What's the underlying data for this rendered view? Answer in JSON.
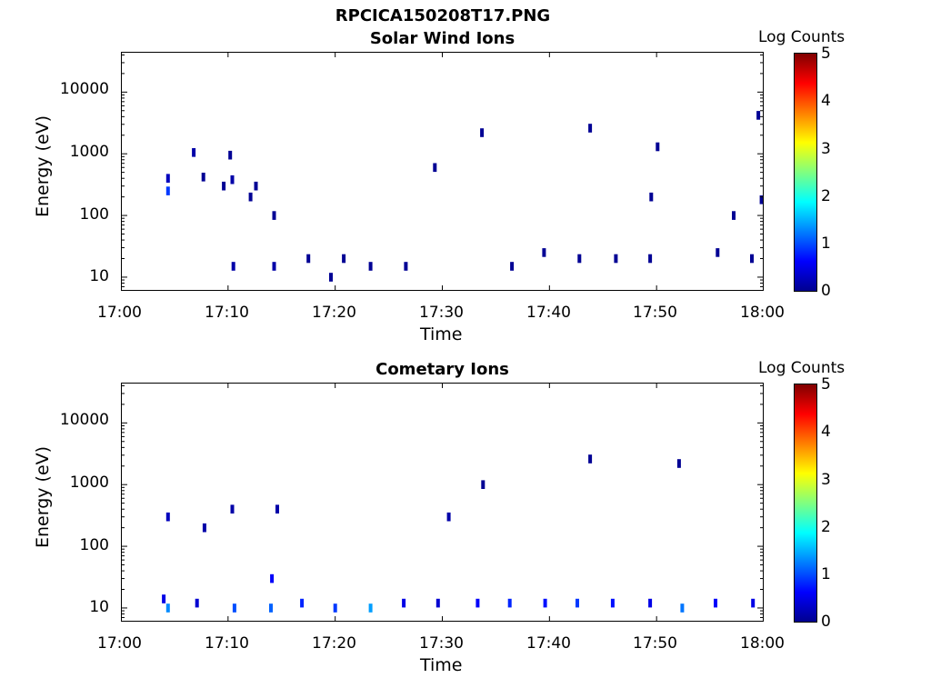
{
  "figure": {
    "title": "RPCICA150208T17.PNG"
  },
  "panels": [
    {
      "title": "Solar Wind Ions",
      "xlabel": "Time",
      "ylabel": "Energy (eV)",
      "colorbar_label": "Log Counts",
      "colorbar_ticks": [
        "0",
        "1",
        "2",
        "3",
        "4",
        "5"
      ],
      "x_tick_labels": [
        "17:00",
        "17:10",
        "17:20",
        "17:30",
        "17:40",
        "17:50",
        "18:00"
      ],
      "y_tick_labels": [
        "10",
        "100",
        "1000",
        "10000"
      ]
    },
    {
      "title": "Cometary Ions",
      "xlabel": "Time",
      "ylabel": "Energy (eV)",
      "colorbar_label": "Log Counts",
      "colorbar_ticks": [
        "0",
        "1",
        "2",
        "3",
        "4",
        "5"
      ],
      "x_tick_labels": [
        "17:00",
        "17:10",
        "17:20",
        "17:30",
        "17:40",
        "17:50",
        "18:00"
      ],
      "y_tick_labels": [
        "10",
        "100",
        "1000",
        "10000"
      ]
    }
  ],
  "chart_data": [
    {
      "type": "heatmap",
      "title": "Solar Wind Ions",
      "xlabel": "Time",
      "ylabel": "Energy (eV)",
      "x_range_minutes_after_1700": [
        0,
        60
      ],
      "y_scale": "log",
      "y_range": [
        6,
        45000
      ],
      "colorbar": {
        "label": "Log Counts",
        "range": [
          0,
          5
        ],
        "colormap": "jet"
      },
      "cells": [
        {
          "t": 4.4,
          "e": 250,
          "log_counts": 0.9
        },
        {
          "t": 4.4,
          "e": 400,
          "log_counts": 0.3
        },
        {
          "t": 6.8,
          "e": 1050,
          "log_counts": 0.2
        },
        {
          "t": 7.7,
          "e": 420,
          "log_counts": 0.1
        },
        {
          "t": 10.2,
          "e": 950,
          "log_counts": 0.1
        },
        {
          "t": 10.4,
          "e": 380,
          "log_counts": 0.2
        },
        {
          "t": 9.6,
          "e": 300,
          "log_counts": 0.1
        },
        {
          "t": 10.5,
          "e": 15,
          "log_counts": 0.2
        },
        {
          "t": 12.1,
          "e": 200,
          "log_counts": 0.1
        },
        {
          "t": 12.6,
          "e": 300,
          "log_counts": 0.1
        },
        {
          "t": 14.3,
          "e": 15,
          "log_counts": 0.2
        },
        {
          "t": 14.3,
          "e": 100,
          "log_counts": 0.1
        },
        {
          "t": 17.5,
          "e": 20,
          "log_counts": 0.1
        },
        {
          "t": 19.6,
          "e": 10,
          "log_counts": 0.1
        },
        {
          "t": 20.8,
          "e": 20,
          "log_counts": 0.1
        },
        {
          "t": 23.3,
          "e": 15,
          "log_counts": 0.1
        },
        {
          "t": 26.6,
          "e": 15,
          "log_counts": 0.1
        },
        {
          "t": 29.3,
          "e": 600,
          "log_counts": 0.1
        },
        {
          "t": 33.7,
          "e": 2200,
          "log_counts": 0.1
        },
        {
          "t": 36.5,
          "e": 15,
          "log_counts": 0.1
        },
        {
          "t": 39.5,
          "e": 25,
          "log_counts": 0.1
        },
        {
          "t": 42.8,
          "e": 20,
          "log_counts": 0.1
        },
        {
          "t": 43.8,
          "e": 2600,
          "log_counts": 0.1
        },
        {
          "t": 46.2,
          "e": 20,
          "log_counts": 0.1
        },
        {
          "t": 49.4,
          "e": 20,
          "log_counts": 0.1
        },
        {
          "t": 49.5,
          "e": 200,
          "log_counts": 0.1
        },
        {
          "t": 50.1,
          "e": 1300,
          "log_counts": 0.1
        },
        {
          "t": 55.7,
          "e": 25,
          "log_counts": 0.1
        },
        {
          "t": 57.2,
          "e": 100,
          "log_counts": 0.1
        },
        {
          "t": 58.9,
          "e": 20,
          "log_counts": 0.1
        },
        {
          "t": 59.5,
          "e": 4200,
          "log_counts": 0.1
        },
        {
          "t": 59.8,
          "e": 180,
          "log_counts": 0.1
        }
      ]
    },
    {
      "type": "heatmap",
      "title": "Cometary Ions",
      "xlabel": "Time",
      "ylabel": "Energy (eV)",
      "x_range_minutes_after_1700": [
        0,
        60
      ],
      "y_scale": "log",
      "y_range": [
        6,
        45000
      ],
      "colorbar": {
        "label": "Log Counts",
        "range": [
          0,
          5
        ],
        "colormap": "jet"
      },
      "cells": [
        {
          "t": 4.0,
          "e": 14,
          "log_counts": 0.5
        },
        {
          "t": 4.4,
          "e": 10,
          "log_counts": 1.3
        },
        {
          "t": 4.4,
          "e": 300,
          "log_counts": 0.3
        },
        {
          "t": 7.1,
          "e": 12,
          "log_counts": 0.4
        },
        {
          "t": 7.8,
          "e": 200,
          "log_counts": 0.2
        },
        {
          "t": 10.6,
          "e": 10,
          "log_counts": 1.0
        },
        {
          "t": 10.4,
          "e": 400,
          "log_counts": 0.2
        },
        {
          "t": 14.0,
          "e": 10,
          "log_counts": 1.1
        },
        {
          "t": 14.1,
          "e": 30,
          "log_counts": 0.6
        },
        {
          "t": 14.6,
          "e": 400,
          "log_counts": 0.2
        },
        {
          "t": 16.9,
          "e": 12,
          "log_counts": 0.8
        },
        {
          "t": 20.0,
          "e": 10,
          "log_counts": 0.9
        },
        {
          "t": 23.3,
          "e": 10,
          "log_counts": 1.4
        },
        {
          "t": 26.4,
          "e": 12,
          "log_counts": 0.5
        },
        {
          "t": 29.6,
          "e": 12,
          "log_counts": 0.4
        },
        {
          "t": 30.6,
          "e": 300,
          "log_counts": 0.2
        },
        {
          "t": 33.3,
          "e": 12,
          "log_counts": 0.6
        },
        {
          "t": 33.8,
          "e": 1000,
          "log_counts": 0.1
        },
        {
          "t": 36.3,
          "e": 12,
          "log_counts": 0.8
        },
        {
          "t": 39.6,
          "e": 12,
          "log_counts": 0.7
        },
        {
          "t": 42.6,
          "e": 12,
          "log_counts": 0.9
        },
        {
          "t": 43.8,
          "e": 2600,
          "log_counts": 0.1
        },
        {
          "t": 45.9,
          "e": 12,
          "log_counts": 0.7
        },
        {
          "t": 49.4,
          "e": 12,
          "log_counts": 0.5
        },
        {
          "t": 52.4,
          "e": 10,
          "log_counts": 1.2
        },
        {
          "t": 52.1,
          "e": 2200,
          "log_counts": 0.1
        },
        {
          "t": 55.5,
          "e": 12,
          "log_counts": 0.6
        },
        {
          "t": 59.0,
          "e": 12,
          "log_counts": 0.5
        }
      ]
    }
  ]
}
